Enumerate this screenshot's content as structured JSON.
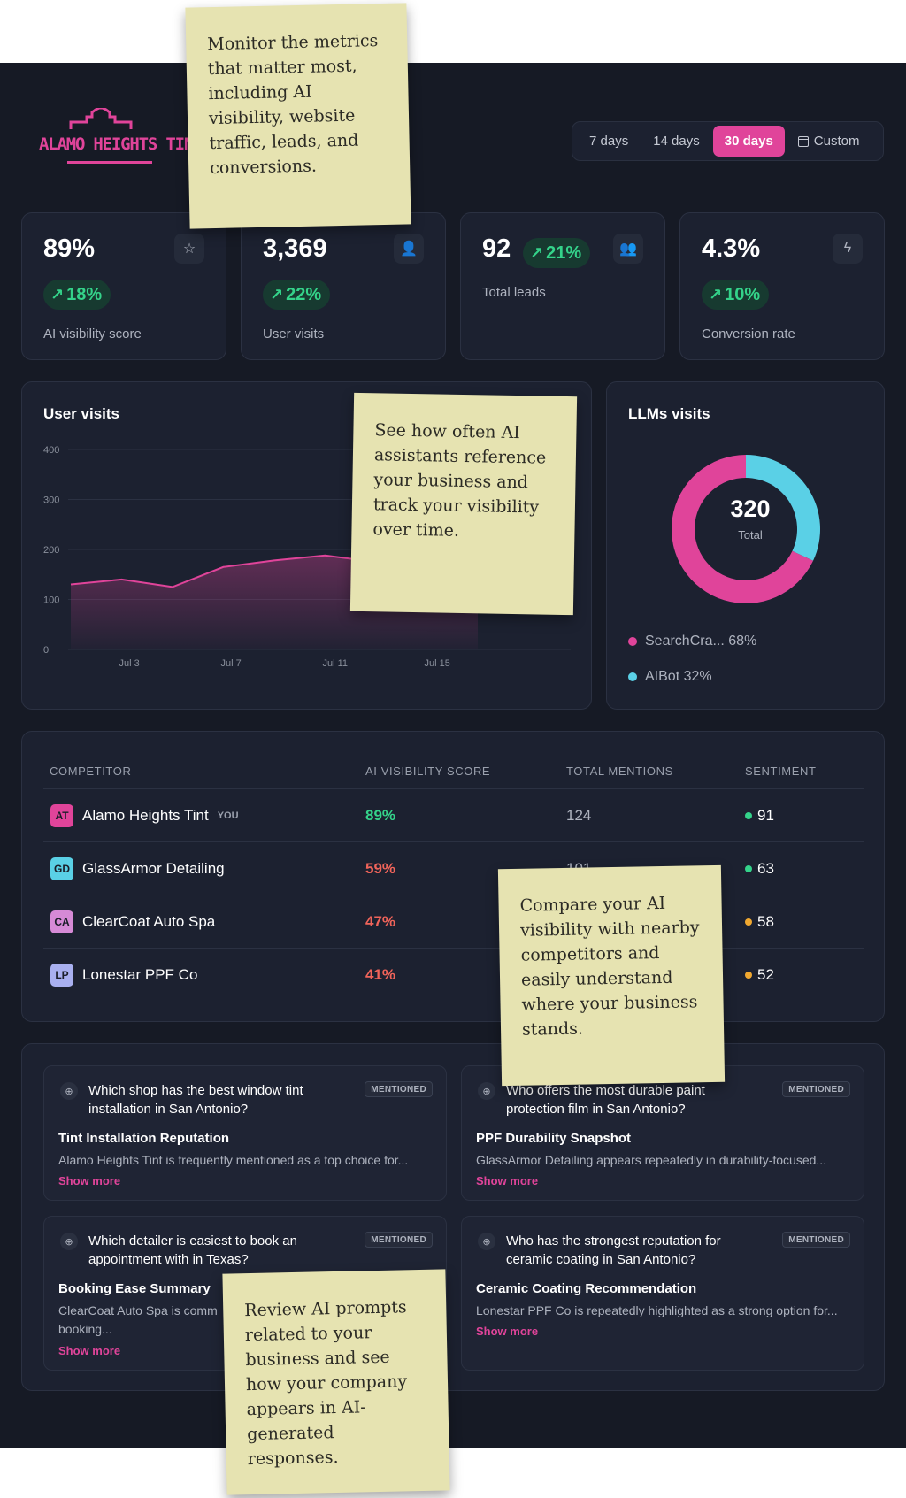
{
  "brand": {
    "name": "ALAMO HEIGHTS TINT",
    "color": "#e0449a"
  },
  "date_range": {
    "options": [
      {
        "label": "7 days",
        "active": false
      },
      {
        "label": "14 days",
        "active": false
      },
      {
        "label": "30 days",
        "active": true
      },
      {
        "label": "Custom",
        "active": false,
        "icon": "calendar-icon"
      }
    ]
  },
  "kpis": [
    {
      "value": "89%",
      "change": "18%",
      "label": "AI visibility score",
      "icon": "star-icon"
    },
    {
      "value": "3,369",
      "change": "22%",
      "label": "User visits",
      "icon": "user-icon"
    },
    {
      "value": "92",
      "change": "21%",
      "label": "Total leads",
      "icon": "users-icon"
    },
    {
      "value": "4.3%",
      "change": "10%",
      "label": "Conversion rate",
      "icon": "bolt-icon"
    }
  ],
  "user_visits": {
    "title": "User visits",
    "chart_data": {
      "type": "area",
      "x": [
        "Jul 1",
        "Jul 3",
        "Jul 5",
        "Jul 7",
        "Jul 9",
        "Jul 11",
        "Jul 13",
        "Jul 15",
        "Jul 17"
      ],
      "x_tick_labels": [
        "Jul 3",
        "Jul 7",
        "Jul 11",
        "Jul 15"
      ],
      "values": [
        130,
        140,
        125,
        165,
        178,
        188,
        175,
        165,
        140
      ],
      "ylim": [
        0,
        400
      ],
      "y_ticks": [
        0,
        100,
        200,
        300,
        400
      ],
      "grid": true,
      "color": "#e0449a"
    }
  },
  "llm_visits": {
    "title": "LLMs visits",
    "total": "320",
    "total_label": "Total",
    "chart_data": {
      "type": "pie",
      "slices": [
        {
          "name": "SearchCra...",
          "value": 68,
          "label": "68%",
          "color": "#e0449a"
        },
        {
          "name": "AIBot",
          "value": 32,
          "label": "32%",
          "color": "#5ad0e6"
        }
      ]
    }
  },
  "competitors": {
    "headers": [
      "COMPETITOR",
      "AI VISIBILITY SCORE",
      "TOTAL MENTIONS",
      "SENTIMENT"
    ],
    "you_label": "YOU",
    "rows": [
      {
        "initials": "AT",
        "name": "Alamo Heights Tint",
        "you": true,
        "score": "89%",
        "mentions": "124",
        "sentiment": "91",
        "avatar_color": "#e0449a",
        "score_color": "#34d38a",
        "sentiment_color": "#34d38a"
      },
      {
        "initials": "GD",
        "name": "GlassArmor Detailing",
        "you": false,
        "score": "59%",
        "mentions": "101",
        "sentiment": "63",
        "avatar_color": "#5ad0e6",
        "score_color": "#f0645a",
        "sentiment_color": "#34d38a"
      },
      {
        "initials": "CA",
        "name": "ClearCoat Auto Spa",
        "you": false,
        "score": "47%",
        "mentions": "",
        "sentiment": "58",
        "avatar_color": "#d68ad6",
        "score_color": "#f0645a",
        "sentiment_color": "#f0a830"
      },
      {
        "initials": "LP",
        "name": "Lonestar PPF Co",
        "you": false,
        "score": "41%",
        "mentions": "",
        "sentiment": "52",
        "avatar_color": "#a9b0f0",
        "score_color": "#f0645a",
        "sentiment_color": "#f0a830"
      }
    ]
  },
  "prompts": [
    {
      "question": "Which shop has the best window tint installation in San Antonio?",
      "badge": "MENTIONED",
      "title": "Tint Installation Reputation",
      "desc": "Alamo Heights Tint is frequently mentioned as a top choice for...",
      "more": "Show more"
    },
    {
      "question": "Who offers the most durable paint protection film in San Antonio?",
      "badge": "MENTIONED",
      "title": "PPF Durability Snapshot",
      "desc": "GlassArmor Detailing appears repeatedly in durability-focused...",
      "more": "Show more"
    },
    {
      "question": "Which detailer is easiest to book an appointment with in Texas?",
      "badge": "MENTIONED",
      "title": "Booking Ease Summary",
      "desc": "ClearCoat Auto Spa is comm booking...",
      "more": "Show more"
    },
    {
      "question": "Who has the strongest reputation for ceramic coating in San Antonio?",
      "badge": "MENTIONED",
      "title": "Ceramic Coating Recommendation",
      "desc": "Lonestar PPF Co is repeatedly highlighted as a strong option for...",
      "more": "Show more"
    }
  ],
  "notes": [
    "Monitor the metrics that matter most, including AI visibility, website traffic, leads, and conversions.",
    "See how often AI assistants reference your business and track your visibility over time.",
    "Compare your AI visibility with nearby competitors and easily understand where your business stands.",
    "Review AI prompts related to your business and see how your company appears in AI-generated responses."
  ]
}
